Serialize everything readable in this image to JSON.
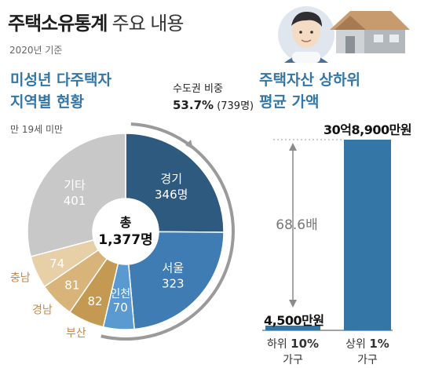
{
  "header": {
    "title": "주택소유통계",
    "subtitle": "주요 내용",
    "year": "2020년 기준"
  },
  "left_panel": {
    "heading_line1": "미성년 다주택자",
    "heading_line2": "지역별 현황",
    "age_note": "만 19세 미만",
    "capital_note_line1": "수도권 비중",
    "capital_pct": "53.7%",
    "capital_count": "(739명)",
    "center_label": "총",
    "center_value": "1,377명"
  },
  "right_panel": {
    "heading_line1": "주택자산 상하위",
    "heading_line2": "평균 가액",
    "ratio_label": "68.6배",
    "bottom_value": "4,500만원",
    "top_value": "30억8,900만원",
    "bottom_label_prefix": "하위 ",
    "bottom_label_pct": "10%",
    "bottom_label_suffix": "가구",
    "top_label_prefix": "상위 ",
    "top_label_pct": "1%",
    "top_label_suffix": "가구"
  },
  "colors": {
    "accent_blue": "#3476a6",
    "gyeonggi": "#2f5a80",
    "seoul": "#3e7cb3",
    "incheon": "#5a9ad0",
    "busan": "#c49a52",
    "gyeongnam": "#d8b47a",
    "chungnam": "#e7cfa7",
    "other": "#c8c8c8",
    "label_orange": "#c5894a"
  },
  "chart_data": [
    {
      "type": "pie",
      "title": "미성년 다주택자 지역별 현황",
      "subtitle": "만 19세 미만",
      "total": 1377,
      "slices": [
        {
          "label": "경기",
          "value": 346,
          "display": "346명",
          "color": "#2f5a80"
        },
        {
          "label": "서울",
          "value": 323,
          "display": "323",
          "color": "#3e7cb3"
        },
        {
          "label": "인천",
          "value": 70,
          "display": "70",
          "color": "#5a9ad0"
        },
        {
          "label": "부산",
          "value": 82,
          "display": "82",
          "color": "#c49a52"
        },
        {
          "label": "경남",
          "value": 81,
          "display": "81",
          "color": "#d8b47a"
        },
        {
          "label": "충남",
          "value": 74,
          "display": "74",
          "color": "#e7cfa7"
        },
        {
          "label": "기타",
          "value": 401,
          "display": "401",
          "color": "#c8c8c8"
        }
      ]
    },
    {
      "type": "bar",
      "title": "주택자산 상하위 평균 가액",
      "categories": [
        "하위 10% 가구",
        "상위 1% 가구"
      ],
      "values": [
        4500,
        308900
      ],
      "unit": "만원",
      "ratio": 68.6
    }
  ]
}
